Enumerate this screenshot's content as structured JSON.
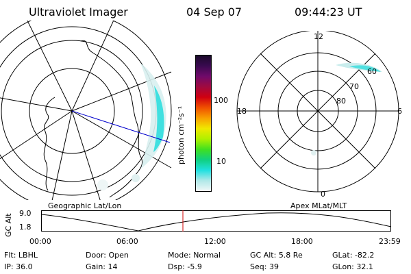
{
  "header": {
    "instrument": "Ultraviolet Imager",
    "date": "04 Sep 07",
    "time": "09:44:23 UT"
  },
  "panels": {
    "left_label": "Geographic Lat/Lon",
    "right_label": "Apex MLat/MLT"
  },
  "colorbar": {
    "unit": "photon cm⁻²s⁻¹",
    "ticks": [
      "100",
      "10"
    ],
    "colors": [
      "#1a0a2a",
      "#3a0a50",
      "#700a6a",
      "#a00a40",
      "#d00010",
      "#f05000",
      "#f8a000",
      "#f0e800",
      "#b0f000",
      "#40e020",
      "#10d080",
      "#20e0e0",
      "#b0e8e8",
      "#f0f8f8"
    ]
  },
  "polar": {
    "mlt_labels": {
      "top": "12",
      "left": "18",
      "right": "6",
      "bottom": "0"
    },
    "lat_labels": [
      "60",
      "70",
      "80"
    ]
  },
  "altitude_plot": {
    "ylabel": "GC Alt",
    "ymax": "9.0",
    "ymin": "1.8",
    "x_ticks": [
      "00:00",
      "06:00",
      "12:00",
      "18:00",
      "23:59"
    ],
    "current_time_marker": "09:44"
  },
  "status": {
    "flt": {
      "label": "Flt:",
      "value": "LBHL"
    },
    "ip": {
      "label": "IP:",
      "value": "36.0"
    },
    "door": {
      "label": "Door:",
      "value": "Open"
    },
    "gain": {
      "label": "Gain:",
      "value": "14"
    },
    "mode": {
      "label": "Mode:",
      "value": "Normal"
    },
    "dsp": {
      "label": "Dsp:",
      "value": "-5.9"
    },
    "gcalt": {
      "label": "GC Alt:",
      "value": "5.8 Re"
    },
    "seq": {
      "label": "Seq:",
      "value": "39"
    },
    "glat": {
      "label": "GLat:",
      "value": "-82.2"
    },
    "glon": {
      "label": "GLon:",
      "value": "32.1"
    }
  }
}
